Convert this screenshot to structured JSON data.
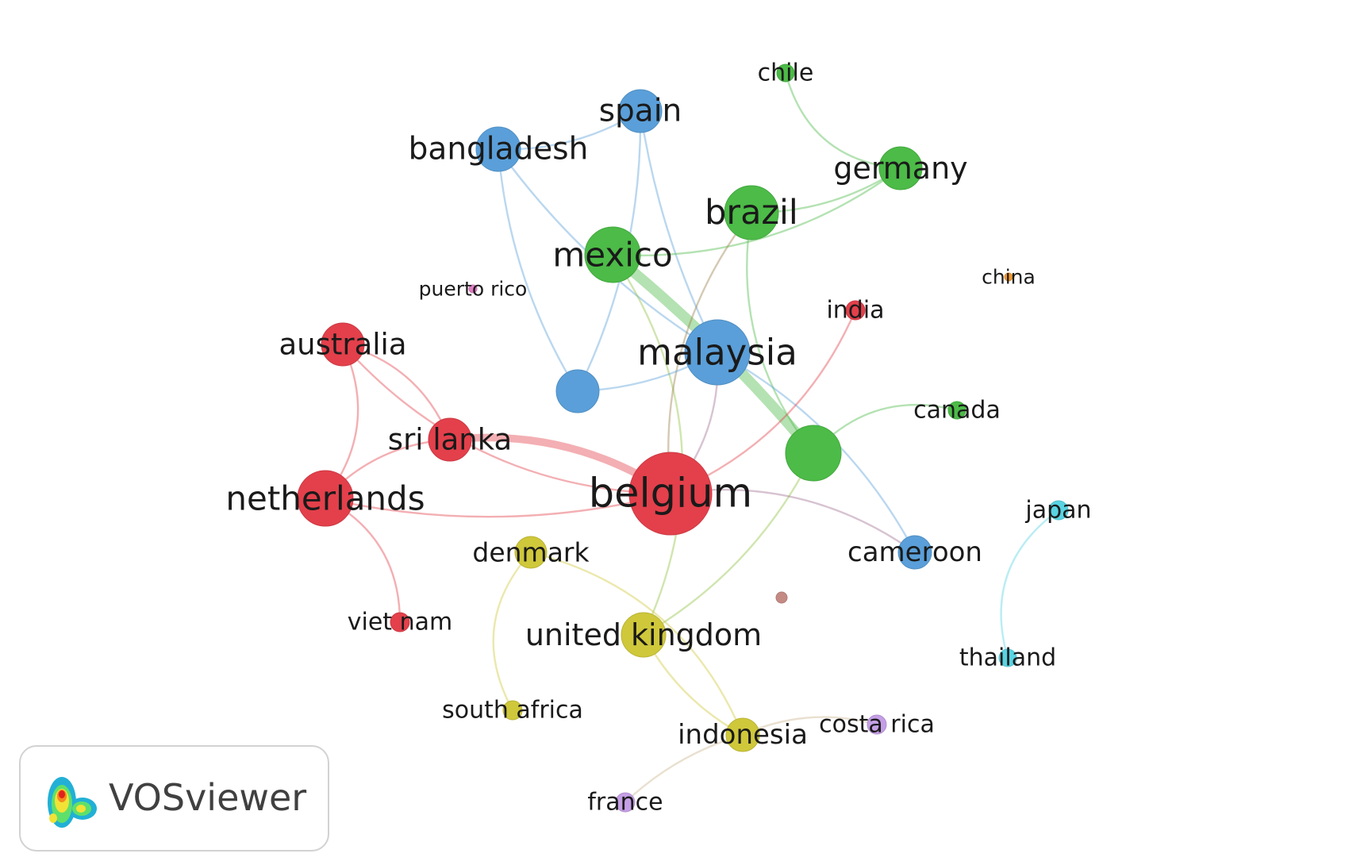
{
  "nodes": [
    {
      "id": "chile",
      "label": "chile",
      "cluster": 3
    },
    {
      "id": "spain",
      "label": "spain",
      "cluster": 2
    },
    {
      "id": "bangladesh",
      "label": "bangladesh",
      "cluster": 2
    },
    {
      "id": "germany",
      "label": "germany",
      "cluster": 3
    },
    {
      "id": "brazil",
      "label": "brazil",
      "cluster": 3
    },
    {
      "id": "mexico",
      "label": "mexico",
      "cluster": 3
    },
    {
      "id": "puerto_rico",
      "label": "puerto rico",
      "cluster": 9
    },
    {
      "id": "china",
      "label": "china",
      "cluster": 10
    },
    {
      "id": "india",
      "label": "india",
      "cluster": 1
    },
    {
      "id": "australia",
      "label": "australia",
      "cluster": 1
    },
    {
      "id": "malaysia",
      "label": "malaysia",
      "cluster": 2
    },
    {
      "id": "blue_unlabeled",
      "label": "",
      "cluster": 2
    },
    {
      "id": "canada",
      "label": "canada",
      "cluster": 3
    },
    {
      "id": "sri_lanka",
      "label": "sri lanka",
      "cluster": 1
    },
    {
      "id": "green_unlabeled",
      "label": "",
      "cluster": 3
    },
    {
      "id": "netherlands",
      "label": "netherlands",
      "cluster": 1
    },
    {
      "id": "belgium",
      "label": "belgium",
      "cluster": 1
    },
    {
      "id": "japan",
      "label": "japan",
      "cluster": 6
    },
    {
      "id": "denmark",
      "label": "denmark",
      "cluster": 4
    },
    {
      "id": "cameroon",
      "label": "cameroon",
      "cluster": 2
    },
    {
      "id": "brown_unlabeled",
      "label": "",
      "cluster": 8
    },
    {
      "id": "viet_nam",
      "label": "viet nam",
      "cluster": 1
    },
    {
      "id": "united_kingdom",
      "label": "united kingdom",
      "cluster": 4
    },
    {
      "id": "thailand",
      "label": "thailand",
      "cluster": 6
    },
    {
      "id": "south_africa",
      "label": "south africa",
      "cluster": 4
    },
    {
      "id": "costa_rica",
      "label": "costa rica",
      "cluster": 5
    },
    {
      "id": "indonesia",
      "label": "indonesia",
      "cluster": 4
    },
    {
      "id": "france",
      "label": "france",
      "cluster": 5
    }
  ],
  "links": [
    {
      "source": "chile",
      "target": "germany",
      "strength": 1
    },
    {
      "source": "spain",
      "target": "bangladesh",
      "strength": 1
    },
    {
      "source": "spain",
      "target": "blue_unlabeled",
      "strength": 1
    },
    {
      "source": "spain",
      "target": "malaysia",
      "strength": 1
    },
    {
      "source": "bangladesh",
      "target": "malaysia",
      "strength": 1
    },
    {
      "source": "bangladesh",
      "target": "blue_unlabeled",
      "strength": 1
    },
    {
      "source": "germany",
      "target": "mexico",
      "strength": 1
    },
    {
      "source": "germany",
      "target": "brazil",
      "strength": 1
    },
    {
      "source": "mexico",
      "target": "green_unlabeled",
      "strength": 4
    },
    {
      "source": "mexico",
      "target": "united_kingdom",
      "strength": 1
    },
    {
      "source": "brazil",
      "target": "green_unlabeled",
      "strength": 1
    },
    {
      "source": "brazil",
      "target": "belgium",
      "strength": 1
    },
    {
      "source": "canada",
      "target": "green_unlabeled",
      "strength": 1
    },
    {
      "source": "green_unlabeled",
      "target": "united_kingdom",
      "strength": 1
    },
    {
      "source": "blue_unlabeled",
      "target": "malaysia",
      "strength": 1
    },
    {
      "source": "malaysia",
      "target": "cameroon",
      "strength": 1
    },
    {
      "source": "malaysia",
      "target": "belgium",
      "strength": 1
    },
    {
      "source": "australia",
      "target": "sri_lanka",
      "strength": 1
    },
    {
      "source": "australia",
      "target": "netherlands",
      "strength": 1
    },
    {
      "source": "australia",
      "target": "belgium",
      "strength": 1
    },
    {
      "source": "sri_lanka",
      "target": "netherlands",
      "strength": 1
    },
    {
      "source": "sri_lanka",
      "target": "belgium",
      "strength": 3
    },
    {
      "source": "netherlands",
      "target": "belgium",
      "strength": 1
    },
    {
      "source": "netherlands",
      "target": "viet_nam",
      "strength": 1
    },
    {
      "source": "india",
      "target": "belgium",
      "strength": 1
    },
    {
      "source": "belgium",
      "target": "cameroon",
      "strength": 1
    },
    {
      "source": "japan",
      "target": "thailand",
      "strength": 1
    },
    {
      "source": "denmark",
      "target": "south_africa",
      "strength": 1
    },
    {
      "source": "denmark",
      "target": "indonesia",
      "strength": 1
    },
    {
      "source": "united_kingdom",
      "target": "indonesia",
      "strength": 1
    },
    {
      "source": "indonesia",
      "target": "costa_rica",
      "strength": 1
    },
    {
      "source": "indonesia",
      "target": "france",
      "strength": 1
    }
  ],
  "cluster_colors": {
    "1": "#e3404b",
    "2": "#5a9fd9",
    "3": "#4cbb47",
    "4": "#cfc83b",
    "5": "#c59fe5",
    "6": "#59d3e2",
    "8": "#c48a84",
    "9": "#e07ec4",
    "10": "#f29a33"
  },
  "logo": {
    "text": "VOSviewer"
  }
}
